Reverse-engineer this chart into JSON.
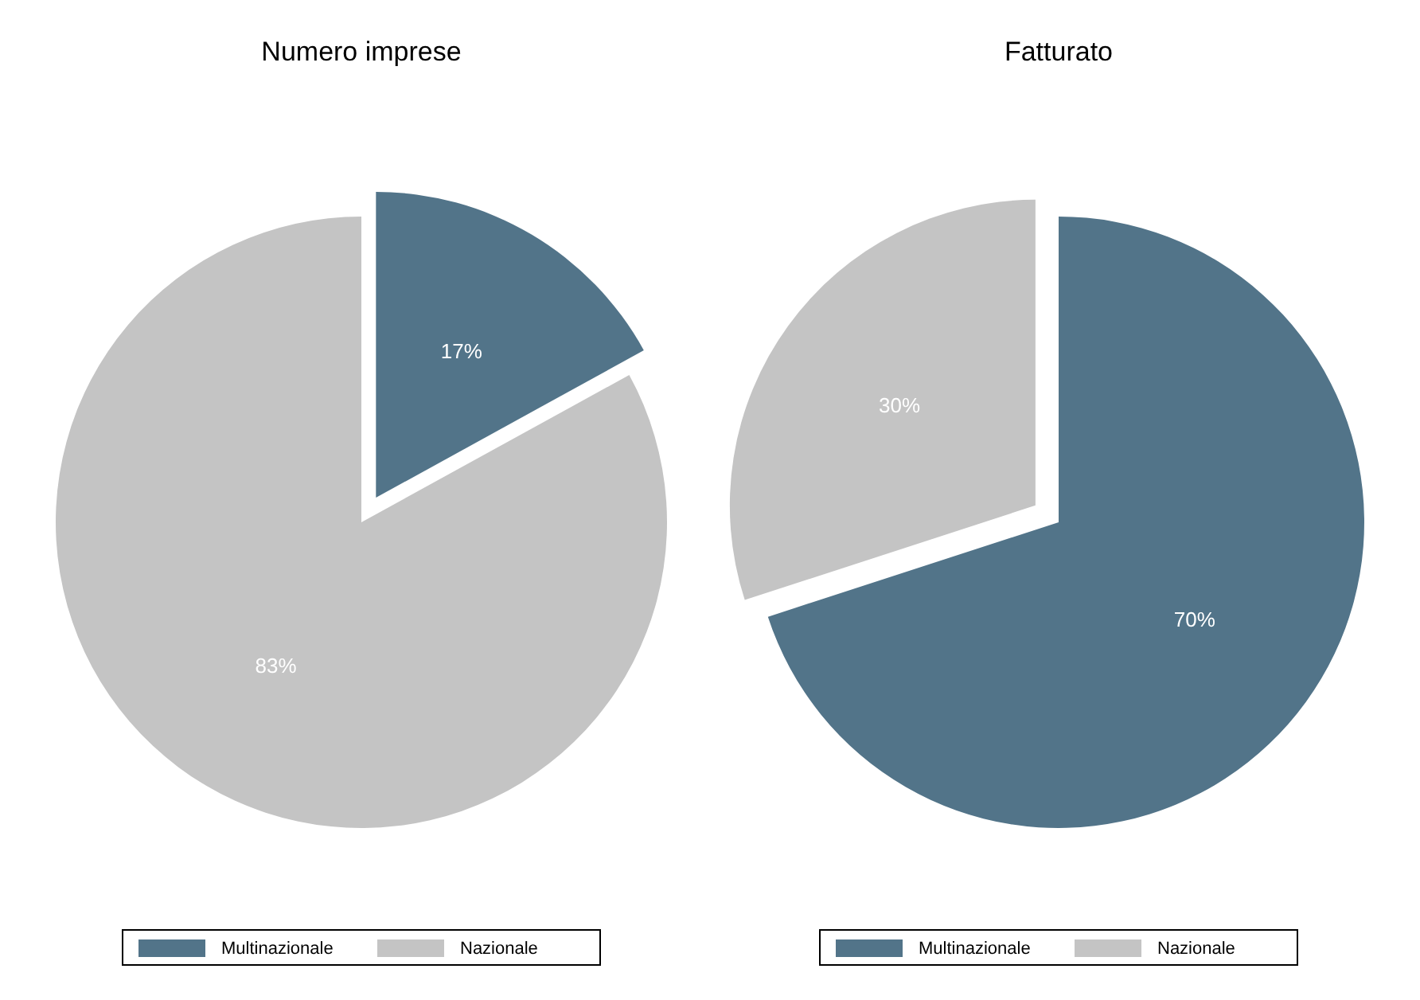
{
  "chart_data": [
    {
      "type": "pie",
      "title": "Numero imprese",
      "categories": [
        "Multinazionale",
        "Nazionale"
      ],
      "values": [
        17,
        83
      ],
      "colors": [
        "#527489",
        "#c4c4c4"
      ],
      "value_labels": [
        "17%",
        "83%"
      ],
      "legend": "bottom"
    },
    {
      "type": "pie",
      "title": "Fatturato",
      "categories": [
        "Multinazionale",
        "Nazionale"
      ],
      "values": [
        70,
        30
      ],
      "colors": [
        "#527489",
        "#c4c4c4"
      ],
      "value_labels": [
        "70%",
        "30%"
      ],
      "legend": "bottom"
    }
  ]
}
